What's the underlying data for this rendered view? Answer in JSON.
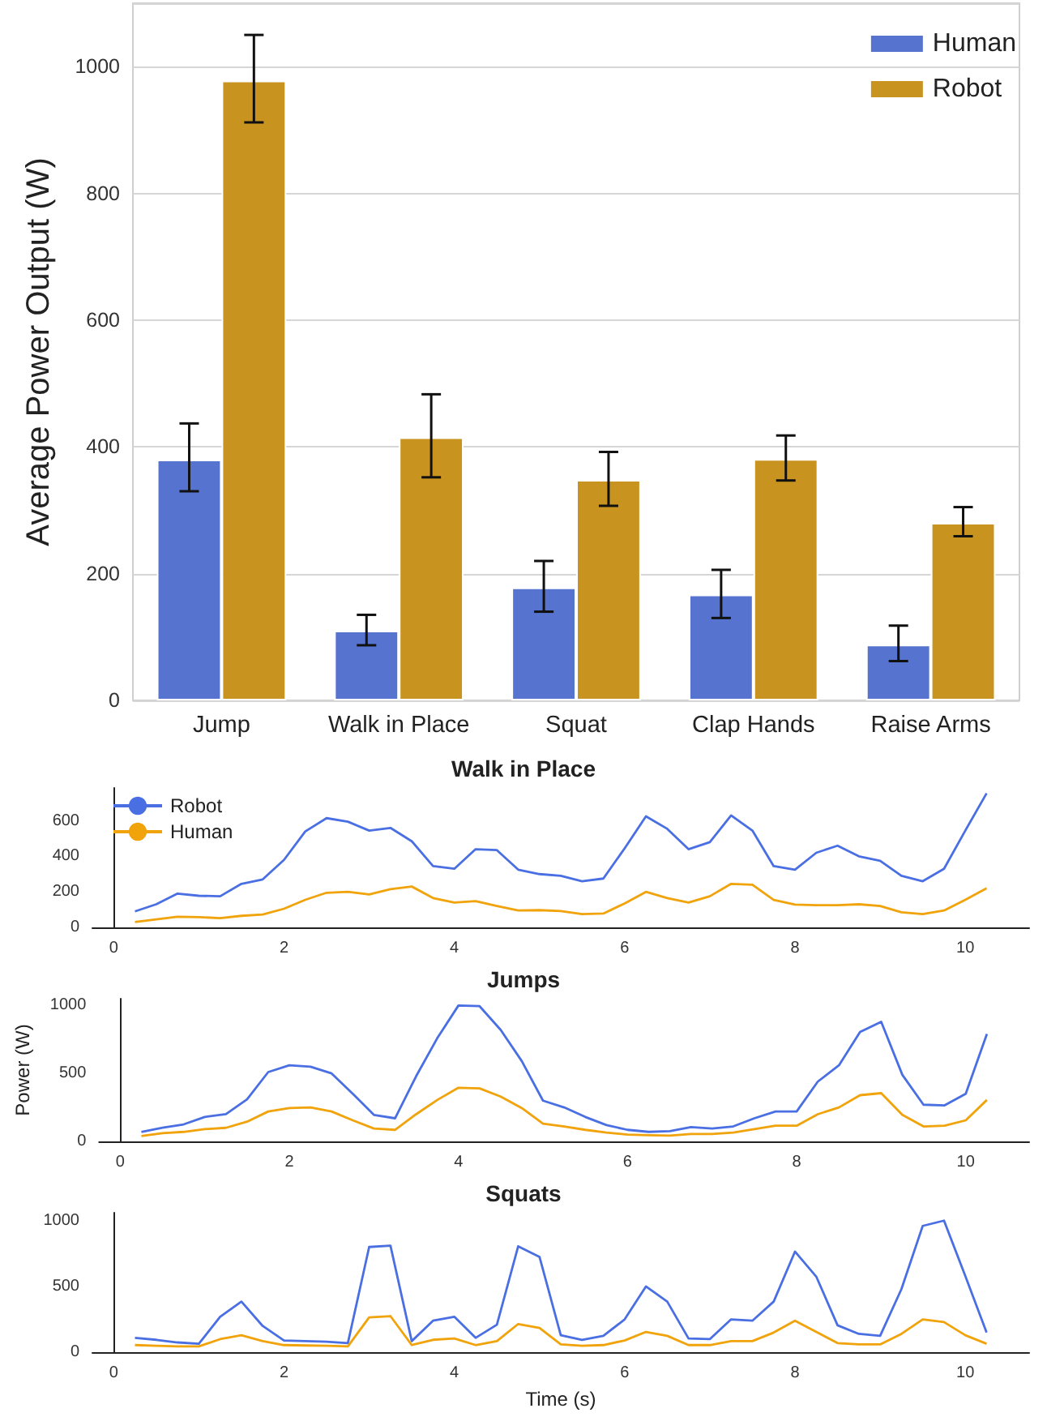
{
  "chart_data": [
    {
      "type": "bar",
      "ylabel": "Average Power Output (W)",
      "categories": [
        "Jump",
        "Walk in Place",
        "Squat",
        "Clap Hands",
        "Raise Arms"
      ],
      "series": [
        {
          "name": "Human",
          "color": "#5573cf",
          "values": [
            380,
            110,
            178,
            167,
            88
          ],
          "errors": [
            [
              330,
              437
            ],
            [
              87,
              135
            ],
            [
              140,
              220
            ],
            [
              130,
              206
            ],
            [
              62,
              118
            ]
          ]
        },
        {
          "name": "Robot",
          "color": "#c8931f",
          "values": [
            978,
            415,
            348,
            381,
            280
          ],
          "errors": [
            [
              912,
              1050
            ],
            [
              352,
              483
            ],
            [
              307,
              392
            ],
            [
              347,
              418
            ],
            [
              259,
              305
            ]
          ]
        }
      ],
      "ylim": [
        0,
        1100
      ],
      "yticks": [
        0,
        200,
        400,
        600,
        800,
        1000
      ],
      "grid": "y",
      "legend": "top right"
    },
    {
      "type": "line",
      "title": "Walk in Place",
      "x": [
        0.25,
        0.5,
        0.75,
        1,
        1.25,
        1.5,
        1.75,
        2,
        2.25,
        2.5,
        2.75,
        3,
        3.25,
        3.5,
        3.75,
        4,
        4.25,
        4.5,
        4.75,
        5,
        5.25,
        5.5,
        5.75,
        6,
        6.25,
        6.5,
        6.75,
        7,
        7.25,
        7.5,
        7.75,
        8,
        8.25,
        8.5,
        8.75,
        9,
        9.25,
        9.5,
        9.75,
        10,
        10.25
      ],
      "series": [
        {
          "name": "Robot",
          "color": "#4a6fe3",
          "values": [
            90,
            130,
            190,
            178,
            175,
            245,
            270,
            380,
            540,
            615,
            595,
            545,
            560,
            485,
            345,
            330,
            440,
            435,
            325,
            300,
            290,
            260,
            275,
            445,
            625,
            555,
            440,
            480,
            630,
            545,
            345,
            325,
            420,
            460,
            400,
            375,
            290,
            260,
            330,
            545,
            755
          ]
        },
        {
          "name": "Human",
          "color": "#f0a30a",
          "values": [
            30,
            45,
            60,
            58,
            52,
            65,
            72,
            105,
            155,
            195,
            200,
            185,
            215,
            230,
            165,
            140,
            148,
            120,
            95,
            97,
            92,
            75,
            78,
            135,
            200,
            165,
            140,
            175,
            245,
            240,
            155,
            128,
            125,
            125,
            130,
            120,
            85,
            75,
            95,
            155,
            220
          ]
        }
      ],
      "xlim": [
        -0.25,
        10.75
      ],
      "xticks": [
        0,
        2,
        4,
        6,
        8,
        10
      ],
      "ylim": [
        0,
        785
      ],
      "yticks": [
        0,
        200,
        400,
        600
      ],
      "legend": "top left"
    },
    {
      "type": "line",
      "title": "Jumps",
      "ylabel": "Power (W)",
      "x": [
        0.25,
        0.5,
        0.75,
        1,
        1.25,
        1.5,
        1.75,
        2,
        2.25,
        2.5,
        2.75,
        3,
        3.25,
        3.5,
        3.75,
        4,
        4.25,
        4.5,
        4.75,
        5,
        5.25,
        5.5,
        5.75,
        6,
        6.25,
        6.5,
        6.75,
        7,
        7.25,
        7.5,
        7.75,
        8,
        8.25,
        8.5,
        8.75,
        9,
        9.25,
        9.5,
        9.75,
        10,
        10.25
      ],
      "series": [
        {
          "color": "#4a6fe3",
          "values": [
            70,
            100,
            125,
            180,
            200,
            310,
            510,
            560,
            550,
            500,
            350,
            195,
            170,
            480,
            760,
            1000,
            995,
            820,
            590,
            300,
            250,
            180,
            120,
            85,
            70,
            75,
            105,
            95,
            110,
            170,
            220,
            220,
            440,
            560,
            805,
            880,
            490,
            270,
            265,
            350,
            790
          ]
        },
        {
          "color": "#f0a30a",
          "values": [
            40,
            60,
            70,
            90,
            100,
            145,
            220,
            245,
            250,
            220,
            155,
            95,
            85,
            200,
            305,
            395,
            390,
            330,
            245,
            130,
            110,
            85,
            65,
            50,
            45,
            43,
            55,
            55,
            65,
            90,
            115,
            115,
            200,
            250,
            340,
            355,
            195,
            110,
            115,
            155,
            305
          ]
        }
      ],
      "xlim": [
        -0.25,
        10.75
      ],
      "xticks": [
        0,
        2,
        4,
        6,
        8,
        10
      ],
      "ylim": [
        0,
        1050
      ],
      "yticks": [
        0,
        500,
        1000
      ]
    },
    {
      "type": "line",
      "title": "Squats",
      "xlabel": "Time (s)",
      "x": [
        0.25,
        0.5,
        0.75,
        1,
        1.25,
        1.5,
        1.75,
        2,
        2.25,
        2.5,
        2.75,
        3,
        3.25,
        3.5,
        3.75,
        4,
        4.25,
        4.5,
        4.75,
        5,
        5.25,
        5.5,
        5.75,
        6,
        6.25,
        6.5,
        6.75,
        7,
        7.25,
        7.5,
        7.75,
        8,
        8.25,
        8.5,
        8.75,
        9,
        9.25,
        9.5,
        9.75,
        10,
        10.25
      ],
      "series": [
        {
          "color": "#4a6fe3",
          "values": [
            110,
            95,
            75,
            65,
            270,
            385,
            200,
            90,
            85,
            80,
            70,
            800,
            810,
            85,
            240,
            270,
            110,
            210,
            805,
            725,
            130,
            95,
            125,
            250,
            500,
            385,
            105,
            100,
            250,
            240,
            385,
            765,
            575,
            205,
            140,
            125,
            480,
            960,
            1000,
            580,
            150
          ]
        },
        {
          "color": "#f0a30a",
          "values": [
            55,
            50,
            45,
            45,
            100,
            130,
            85,
            55,
            52,
            50,
            45,
            265,
            275,
            55,
            95,
            105,
            55,
            85,
            215,
            185,
            60,
            50,
            55,
            90,
            155,
            125,
            55,
            55,
            85,
            85,
            150,
            240,
            155,
            70,
            60,
            60,
            140,
            250,
            230,
            130,
            65
          ]
        }
      ],
      "xlim": [
        -0.25,
        10.75
      ],
      "xticks": [
        0,
        2,
        4,
        6,
        8,
        10
      ],
      "ylim": [
        0,
        1060
      ],
      "yticks": [
        0,
        500,
        1000
      ]
    }
  ]
}
